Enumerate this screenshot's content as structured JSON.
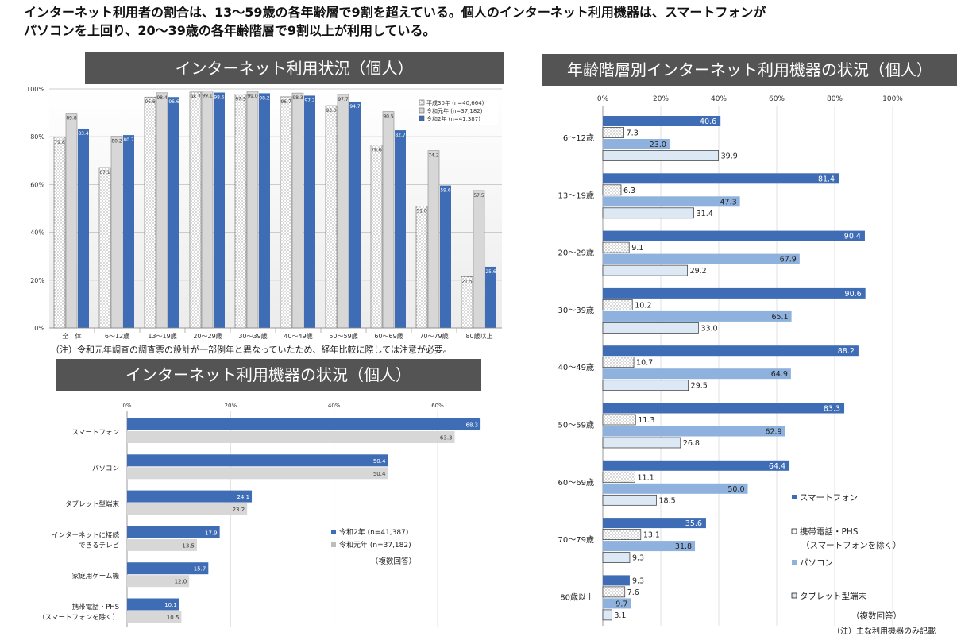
{
  "headline": {
    "line1": "インターネット利用者の割合は、13～59歳の各年齢層で9割を超えている。個人のインターネット利用機器は、スマートフォンが",
    "line2": "パソコンを上回り、20～39歳の各年齢階層で9割以上が利用している。"
  },
  "colors": {
    "navy": "#3f6db5",
    "light_blue": "#8eb2dd",
    "pale_blue": "#dde8f5",
    "gray_bar": "#d7d7d7",
    "title_band": "#545454"
  },
  "chart_data": [
    {
      "type": "bar",
      "title": "インターネット利用状況（個人）",
      "categories": [
        "全　体",
        "6～12歳",
        "13～19歳",
        "20～29歳",
        "30～39歳",
        "40～49歳",
        "50～59歳",
        "60～69歳",
        "70～79歳",
        "80歳以上"
      ],
      "series": [
        {
          "name": "平成30年 (n=40,664)",
          "values": [
            79.8,
            67.1,
            96.6,
            98.7,
            97.9,
            96.7,
            93.0,
            76.6,
            51.0,
            21.5
          ]
        },
        {
          "name": "令和元年 (n=37,182)",
          "values": [
            89.8,
            80.2,
            98.4,
            99.1,
            99.0,
            98.3,
            97.7,
            90.5,
            74.2,
            57.5
          ]
        },
        {
          "name": "令和2年 (n=41,387)",
          "values": [
            83.4,
            80.7,
            96.6,
            98.5,
            98.2,
            97.2,
            94.7,
            82.7,
            59.6,
            25.6
          ]
        }
      ],
      "yticks": [
        "0%",
        "20%",
        "40%",
        "60%",
        "80%",
        "100%"
      ],
      "ylim": [
        0,
        100
      ],
      "legend": "top-right",
      "note": "（注）令和元年調査の調査票の設計が一部例年と異なっていたため、経年比較に際しては注意が必要。"
    },
    {
      "type": "bar",
      "orientation": "horizontal",
      "title": "インターネット利用機器の状況（個人）",
      "categories": [
        [
          "スマートフォン"
        ],
        [
          "パソコン"
        ],
        [
          "タブレット型端末"
        ],
        [
          "インターネットに接続",
          "できるテレビ"
        ],
        [
          "家庭用ゲーム機"
        ],
        [
          "携帯電話・PHS",
          "（スマートフォンを除く）"
        ]
      ],
      "series": [
        {
          "name": "令和2年 (n=41,387)",
          "values": [
            68.3,
            50.4,
            24.1,
            17.9,
            15.7,
            10.1
          ]
        },
        {
          "name": "令和元年 (n=37,182)",
          "values": [
            63.3,
            50.4,
            23.2,
            13.5,
            12.0,
            10.5
          ]
        }
      ],
      "xticks": [
        "0%",
        "20%",
        "40%",
        "60%"
      ],
      "xlim": [
        0,
        70
      ],
      "legend_note": "（複数回答）"
    },
    {
      "type": "bar",
      "orientation": "horizontal",
      "title": "年齢階層別インターネット利用機器の状況（個人）",
      "categories": [
        "6～12歳",
        "13～19歳",
        "20～29歳",
        "30～39歳",
        "40～49歳",
        "50～59歳",
        "60～69歳",
        "70～79歳",
        "80歳以上"
      ],
      "series": [
        {
          "name": "スマートフォン",
          "values": [
            40.6,
            81.4,
            90.4,
            90.6,
            88.2,
            83.3,
            64.4,
            35.6,
            9.3
          ]
        },
        {
          "name": "携帯電話・PHS",
          "name_line2": "（スマートフォンを除く）",
          "values": [
            7.3,
            6.3,
            9.1,
            10.2,
            10.7,
            11.3,
            11.1,
            13.1,
            7.6
          ]
        },
        {
          "name": "パソコン",
          "values": [
            23.0,
            47.3,
            67.9,
            65.1,
            64.9,
            62.9,
            50.0,
            31.8,
            9.7
          ]
        },
        {
          "name": "タブレット型端末",
          "values": [
            39.9,
            31.4,
            29.2,
            33.0,
            29.5,
            26.8,
            18.5,
            9.3,
            3.1
          ]
        }
      ],
      "xticks": [
        "0%",
        "20%",
        "40%",
        "60%",
        "80%",
        "100%"
      ],
      "xlim": [
        0,
        100
      ],
      "legend": "bottom-right",
      "legend_note": "（複数回答）",
      "note": "（注）主な利用機器のみ記載"
    }
  ]
}
